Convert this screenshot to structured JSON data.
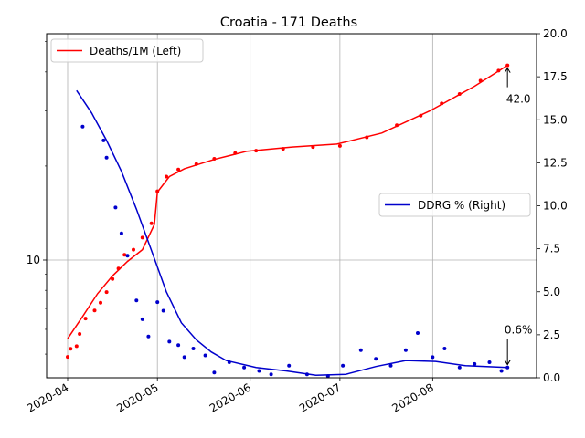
{
  "chart_data": {
    "type": "line",
    "title": "Croatia - 171 Deaths",
    "x_ticks": [
      "2020-04",
      "2020-05",
      "2020-06",
      "2020-07",
      "2020-08"
    ],
    "xlim": [
      "2020-04-01",
      "2020-08-29"
    ],
    "left_axis": {
      "scale": "log",
      "ylim": [
        4.2,
        53
      ],
      "tick_labels": [
        {
          "value": 10,
          "label": "10"
        }
      ]
    },
    "right_axis": {
      "scale": "linear",
      "ylim": [
        0,
        20
      ],
      "tick_labels": [
        "0.0",
        "2.5",
        "5.0",
        "7.5",
        "10.0",
        "12.5",
        "15.0",
        "17.5",
        "20.0"
      ]
    },
    "grid": true,
    "series": [
      {
        "name": "Deaths/1M (Left)",
        "axis": "left",
        "color": "#ff0000",
        "line": [
          [
            "2020-04-01",
            5.6
          ],
          [
            "2020-04-06",
            6.6
          ],
          [
            "2020-04-11",
            7.8
          ],
          [
            "2020-04-16",
            8.9
          ],
          [
            "2020-04-21",
            9.9
          ],
          [
            "2020-04-26",
            10.8
          ],
          [
            "2020-04-30",
            13.0
          ],
          [
            "2020-05-01",
            16.5
          ],
          [
            "2020-05-05",
            18.5
          ],
          [
            "2020-05-10",
            19.6
          ],
          [
            "2020-05-20",
            21.0
          ],
          [
            "2020-05-31",
            22.3
          ],
          [
            "2020-06-15",
            23.0
          ],
          [
            "2020-06-30",
            23.5
          ],
          [
            "2020-07-15",
            25.5
          ],
          [
            "2020-07-31",
            30.0
          ],
          [
            "2020-08-15",
            36.0
          ],
          [
            "2020-08-26",
            42.0
          ]
        ],
        "points": [
          [
            "2020-04-01",
            4.9
          ],
          [
            "2020-04-02",
            5.2
          ],
          [
            "2020-04-04",
            5.3
          ],
          [
            "2020-04-05",
            5.8
          ],
          [
            "2020-04-07",
            6.5
          ],
          [
            "2020-04-10",
            6.9
          ],
          [
            "2020-04-12",
            7.3
          ],
          [
            "2020-04-14",
            7.9
          ],
          [
            "2020-04-16",
            8.7
          ],
          [
            "2020-04-18",
            9.4
          ],
          [
            "2020-04-20",
            10.4
          ],
          [
            "2020-04-23",
            10.8
          ],
          [
            "2020-04-26",
            11.8
          ],
          [
            "2020-04-29",
            13.1
          ],
          [
            "2020-05-01",
            16.6
          ],
          [
            "2020-05-04",
            18.5
          ],
          [
            "2020-05-08",
            19.5
          ],
          [
            "2020-05-14",
            20.3
          ],
          [
            "2020-05-20",
            21.1
          ],
          [
            "2020-05-27",
            22.0
          ],
          [
            "2020-06-03",
            22.4
          ],
          [
            "2020-06-12",
            22.7
          ],
          [
            "2020-06-22",
            23.0
          ],
          [
            "2020-07-01",
            23.2
          ],
          [
            "2020-07-10",
            24.7
          ],
          [
            "2020-07-20",
            27.0
          ],
          [
            "2020-07-28",
            29.0
          ],
          [
            "2020-08-04",
            31.7
          ],
          [
            "2020-08-10",
            34.0
          ],
          [
            "2020-08-17",
            37.5
          ],
          [
            "2020-08-23",
            40.4
          ],
          [
            "2020-08-26",
            42.0
          ]
        ]
      },
      {
        "name": "DDRG % (Right)",
        "axis": "right",
        "color": "#0000cc",
        "line": [
          [
            "2020-04-04",
            16.7
          ],
          [
            "2020-04-09",
            15.4
          ],
          [
            "2020-04-14",
            13.8
          ],
          [
            "2020-04-19",
            12.0
          ],
          [
            "2020-04-24",
            9.8
          ],
          [
            "2020-04-29",
            7.4
          ],
          [
            "2020-05-04",
            5.0
          ],
          [
            "2020-05-09",
            3.2
          ],
          [
            "2020-05-14",
            2.2
          ],
          [
            "2020-05-19",
            1.5
          ],
          [
            "2020-05-24",
            1.0
          ],
          [
            "2020-06-03",
            0.6
          ],
          [
            "2020-06-13",
            0.4
          ],
          [
            "2020-06-23",
            0.15
          ],
          [
            "2020-07-03",
            0.2
          ],
          [
            "2020-07-13",
            0.65
          ],
          [
            "2020-07-23",
            1.0
          ],
          [
            "2020-08-02",
            0.95
          ],
          [
            "2020-08-12",
            0.7
          ],
          [
            "2020-08-26",
            0.6
          ]
        ],
        "points": [
          [
            "2020-04-06",
            14.6
          ],
          [
            "2020-04-13",
            13.8
          ],
          [
            "2020-04-14",
            12.8
          ],
          [
            "2020-04-17",
            9.9
          ],
          [
            "2020-04-19",
            8.4
          ],
          [
            "2020-04-21",
            7.1
          ],
          [
            "2020-04-24",
            4.5
          ],
          [
            "2020-04-26",
            3.4
          ],
          [
            "2020-04-28",
            2.4
          ],
          [
            "2020-05-01",
            4.4
          ],
          [
            "2020-05-03",
            3.9
          ],
          [
            "2020-05-05",
            2.1
          ],
          [
            "2020-05-08",
            1.9
          ],
          [
            "2020-05-10",
            1.2
          ],
          [
            "2020-05-13",
            1.7
          ],
          [
            "2020-05-17",
            1.3
          ],
          [
            "2020-05-20",
            0.3
          ],
          [
            "2020-05-25",
            0.9
          ],
          [
            "2020-05-30",
            0.6
          ],
          [
            "2020-06-04",
            0.4
          ],
          [
            "2020-06-08",
            0.2
          ],
          [
            "2020-06-14",
            0.7
          ],
          [
            "2020-06-20",
            0.2
          ],
          [
            "2020-06-27",
            0.1
          ],
          [
            "2020-07-02",
            0.7
          ],
          [
            "2020-07-08",
            1.6
          ],
          [
            "2020-07-13",
            1.1
          ],
          [
            "2020-07-18",
            0.7
          ],
          [
            "2020-07-23",
            1.6
          ],
          [
            "2020-07-27",
            2.6
          ],
          [
            "2020-08-01",
            1.2
          ],
          [
            "2020-08-05",
            1.7
          ],
          [
            "2020-08-10",
            0.6
          ],
          [
            "2020-08-15",
            0.8
          ],
          [
            "2020-08-20",
            0.9
          ],
          [
            "2020-08-24",
            0.4
          ],
          [
            "2020-08-26",
            0.6
          ]
        ]
      }
    ],
    "legend": [
      {
        "label": "Deaths/1M (Left)",
        "color": "#ff0000",
        "placement": "top-left"
      },
      {
        "label": "DDRG % (Right)",
        "color": "#0000cc",
        "placement": "center-right"
      }
    ],
    "annotations": [
      {
        "text": "42.0",
        "x": "2020-08-26",
        "axis": "left",
        "value": 42.0
      },
      {
        "text": "0.6%",
        "x": "2020-08-26",
        "axis": "right",
        "value": 0.6
      }
    ]
  }
}
